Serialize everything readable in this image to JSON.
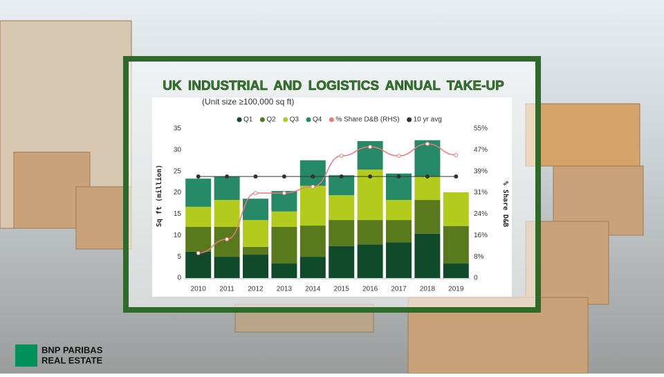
{
  "chart_data": {
    "type": "bar",
    "title": "UK INDUSTRIAL AND LOGISTICS ANNUAL TAKE-UP",
    "subtitle": "(Unit size ≥100,000 sq ft)",
    "y_label": "Sq ft (million)",
    "y2_label": "% Share D&B",
    "categories": [
      "2010",
      "2011",
      "2012",
      "2013",
      "2014",
      "2015",
      "2016",
      "2017",
      "2018",
      "2019"
    ],
    "stacked": true,
    "series": [
      {
        "name": "Q1",
        "color": "#0f4a2b",
        "values": [
          6.2,
          5.0,
          5.5,
          3.4,
          5.0,
          7.5,
          7.9,
          8.4,
          10.4,
          3.4
        ]
      },
      {
        "name": "Q2",
        "color": "#587a1c",
        "values": [
          5.8,
          7.0,
          1.8,
          8.6,
          7.3,
          6.1,
          5.7,
          5.2,
          7.9,
          8.8
        ]
      },
      {
        "name": "Q3",
        "color": "#b3cb1c",
        "values": [
          4.7,
          6.3,
          6.3,
          3.6,
          9.3,
          5.8,
          11.8,
          4.7,
          5.5,
          7.9
        ]
      },
      {
        "name": "Q4",
        "color": "#268a68",
        "values": [
          6.6,
          5.5,
          5.0,
          4.8,
          6.0,
          4.7,
          6.7,
          6.2,
          8.5,
          null
        ]
      },
      {
        "name": "% Share D&B (RHS)",
        "color": "#e87a7a",
        "type": "line",
        "axis": "y2",
        "values": [
          9.2,
          14.3,
          31.3,
          31.3,
          33.6,
          45.0,
          48.3,
          45.0,
          49.4,
          45.3
        ]
      },
      {
        "name": "10 yr avg",
        "color": "#333333",
        "type": "line",
        "values": [
          23.8,
          23.8,
          23.8,
          23.8,
          23.8,
          23.8,
          23.8,
          23.8,
          23.8,
          23.8
        ]
      }
    ],
    "ylim": [
      0,
      35
    ],
    "yticks": [
      0,
      5,
      10,
      15,
      20,
      25,
      30,
      35
    ],
    "y2lim": [
      0,
      55
    ],
    "y2ticks": [
      {
        "value": 0,
        "label": "0"
      },
      {
        "value": 7.857,
        "label": "8%"
      },
      {
        "value": 15.714,
        "label": "16%"
      },
      {
        "value": 23.571,
        "label": "24%"
      },
      {
        "value": 31.429,
        "label": "31%"
      },
      {
        "value": 39.286,
        "label": "39%"
      },
      {
        "value": 47.143,
        "label": "47%"
      },
      {
        "value": 55,
        "label": "55%"
      }
    ],
    "legend": "top",
    "grid": false
  },
  "logo": {
    "line1": "BNP PARIBAS",
    "line2": "REAL ESTATE"
  }
}
